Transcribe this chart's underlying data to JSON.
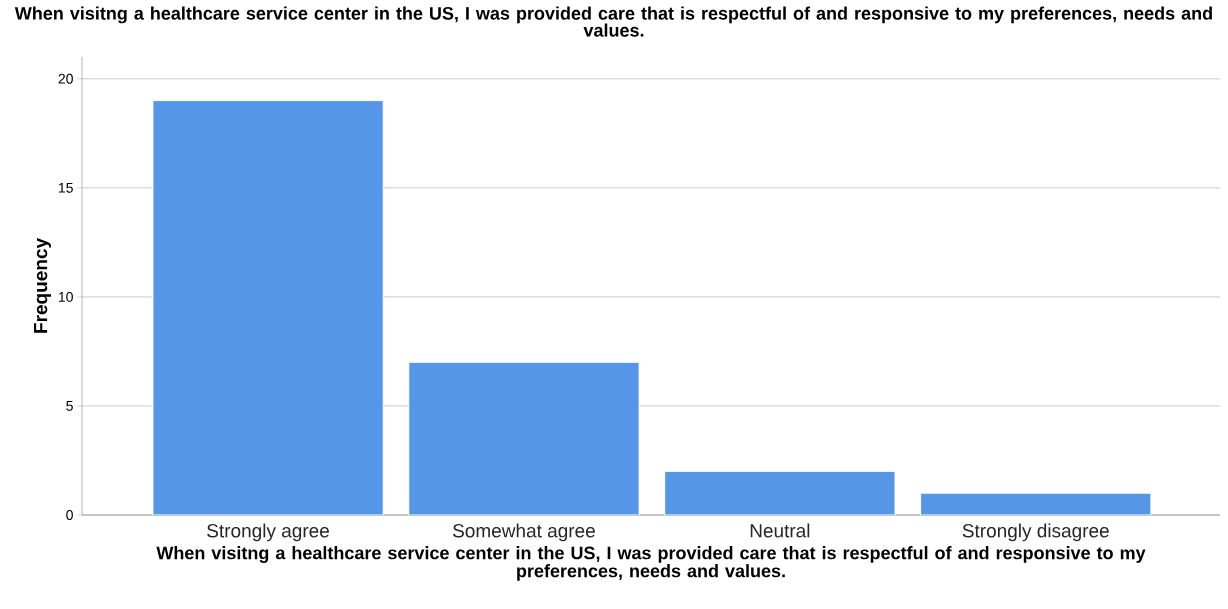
{
  "chart_data": {
    "type": "bar",
    "title": "When visitng a healthcare service center in the US, I was provided care that is respectful of and responsive to my preferences, needs and values.",
    "xlabel": "When visitng a healthcare service center in the US, I was provided care that is respectful of and responsive to my preferences, needs and values.",
    "ylabel": "Frequency",
    "categories": [
      "Strongly agree",
      "Somewhat agree",
      "Neutral",
      "Strongly disagree"
    ],
    "values": [
      19,
      7,
      2,
      1
    ],
    "color": "#5596e6",
    "ylim": [
      0,
      21
    ],
    "yticks": [
      0,
      5,
      10,
      15,
      20
    ],
    "grid": "y"
  }
}
